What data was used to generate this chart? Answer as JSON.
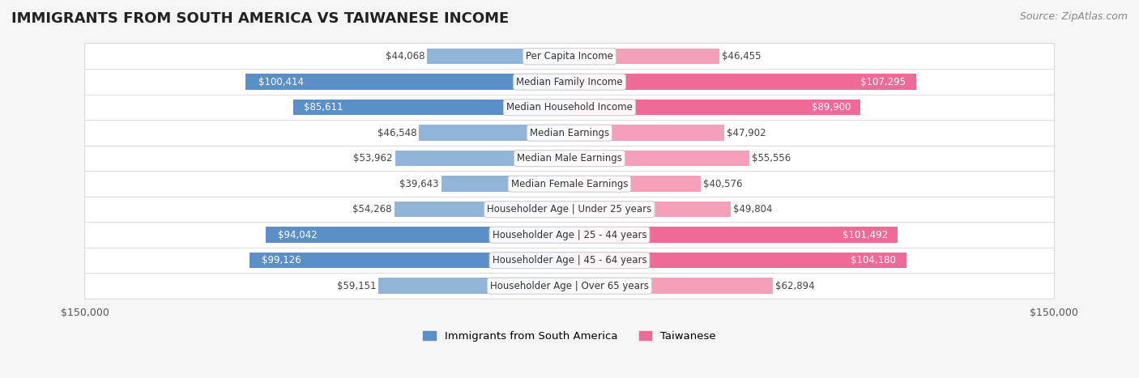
{
  "title": "IMMIGRANTS FROM SOUTH AMERICA VS TAIWANESE INCOME",
  "source": "Source: ZipAtlas.com",
  "categories": [
    "Per Capita Income",
    "Median Family Income",
    "Median Household Income",
    "Median Earnings",
    "Median Male Earnings",
    "Median Female Earnings",
    "Householder Age | Under 25 years",
    "Householder Age | 25 - 44 years",
    "Householder Age | 45 - 64 years",
    "Householder Age | Over 65 years"
  ],
  "left_values": [
    44068,
    100414,
    85611,
    46548,
    53962,
    39643,
    54268,
    94042,
    99126,
    59151
  ],
  "right_values": [
    46455,
    107295,
    89900,
    47902,
    55556,
    40576,
    49804,
    101492,
    104180,
    62894
  ],
  "left_labels": [
    "$44,068",
    "$100,414",
    "$85,611",
    "$46,548",
    "$53,962",
    "$39,643",
    "$54,268",
    "$94,042",
    "$99,126",
    "$59,151"
  ],
  "right_labels": [
    "$46,455",
    "$107,295",
    "$89,900",
    "$47,902",
    "$55,556",
    "$40,576",
    "$49,804",
    "$101,492",
    "$104,180",
    "$62,894"
  ],
  "left_color": "#92b4d8",
  "left_color_strong": "#5b8fc7",
  "right_color": "#f4a0b8",
  "right_color_strong": "#ef6a96",
  "label_threshold": 80000,
  "max_val": 150000,
  "legend_left": "Immigrants from South America",
  "legend_right": "Taiwanese",
  "bg_color": "#f5f5f5",
  "row_bg_color": "#ffffff",
  "title_fontsize": 13,
  "source_fontsize": 9,
  "bar_label_fontsize": 8.5,
  "category_fontsize": 8.5,
  "axis_label_fontsize": 9
}
